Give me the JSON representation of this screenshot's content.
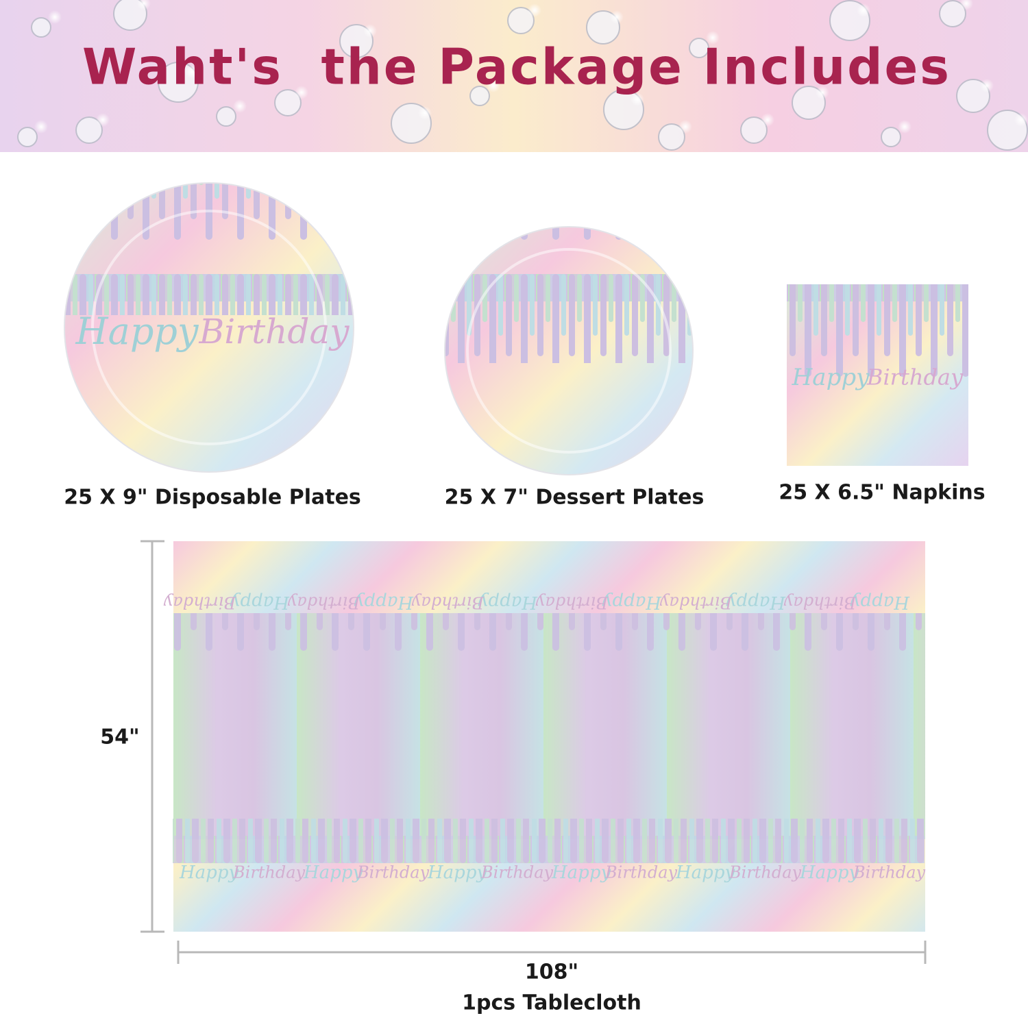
{
  "header": {
    "title": "Waht's  the Package Includes"
  },
  "items": [
    {
      "label": "25 X 9\" Disposable Plates"
    },
    {
      "label": "25 X 7\" Dessert Plates"
    },
    {
      "label": "25 X 6.5\" Napkins"
    }
  ],
  "print_text": {
    "happy": "Happy",
    "birthday": "Birthday"
  },
  "tablecloth": {
    "height": "54\"",
    "width": "108\"",
    "label": "1pcs Tablecloth"
  }
}
